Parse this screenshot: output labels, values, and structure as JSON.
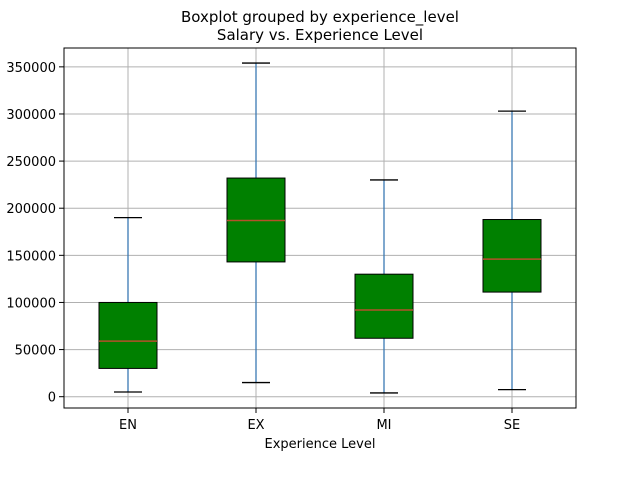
{
  "chart_data": {
    "type": "boxplot",
    "title": "Boxplot grouped by experience_level",
    "subtitle": "Salary vs. Experience Level",
    "xlabel": "Experience Level",
    "ylabel": "",
    "ylim": [
      -12000,
      370000
    ],
    "yticks": [
      0,
      50000,
      100000,
      150000,
      200000,
      250000,
      300000,
      350000
    ],
    "grid": true,
    "categories": [
      "EN",
      "EX",
      "MI",
      "SE"
    ],
    "boxes": [
      {
        "category": "EN",
        "whisker_low": 5000,
        "q1": 30000,
        "median": 59000,
        "q3": 100000,
        "whisker_high": 190000
      },
      {
        "category": "EX",
        "whisker_low": 15000,
        "q1": 143000,
        "median": 187000,
        "q3": 232000,
        "whisker_high": 354000
      },
      {
        "category": "MI",
        "whisker_low": 4000,
        "q1": 62000,
        "median": 92000,
        "q3": 130000,
        "whisker_high": 230000
      },
      {
        "category": "SE",
        "whisker_low": 7500,
        "q1": 111000,
        "median": 146000,
        "q3": 188000,
        "whisker_high": 303000
      }
    ],
    "colors": {
      "box_fill": "#008000",
      "box_edge": "#000000",
      "median": "#b5512a",
      "whisker": "#3a78b3",
      "cap": "#000000",
      "grid": "#b0b0b0",
      "axes": "#000000"
    }
  }
}
